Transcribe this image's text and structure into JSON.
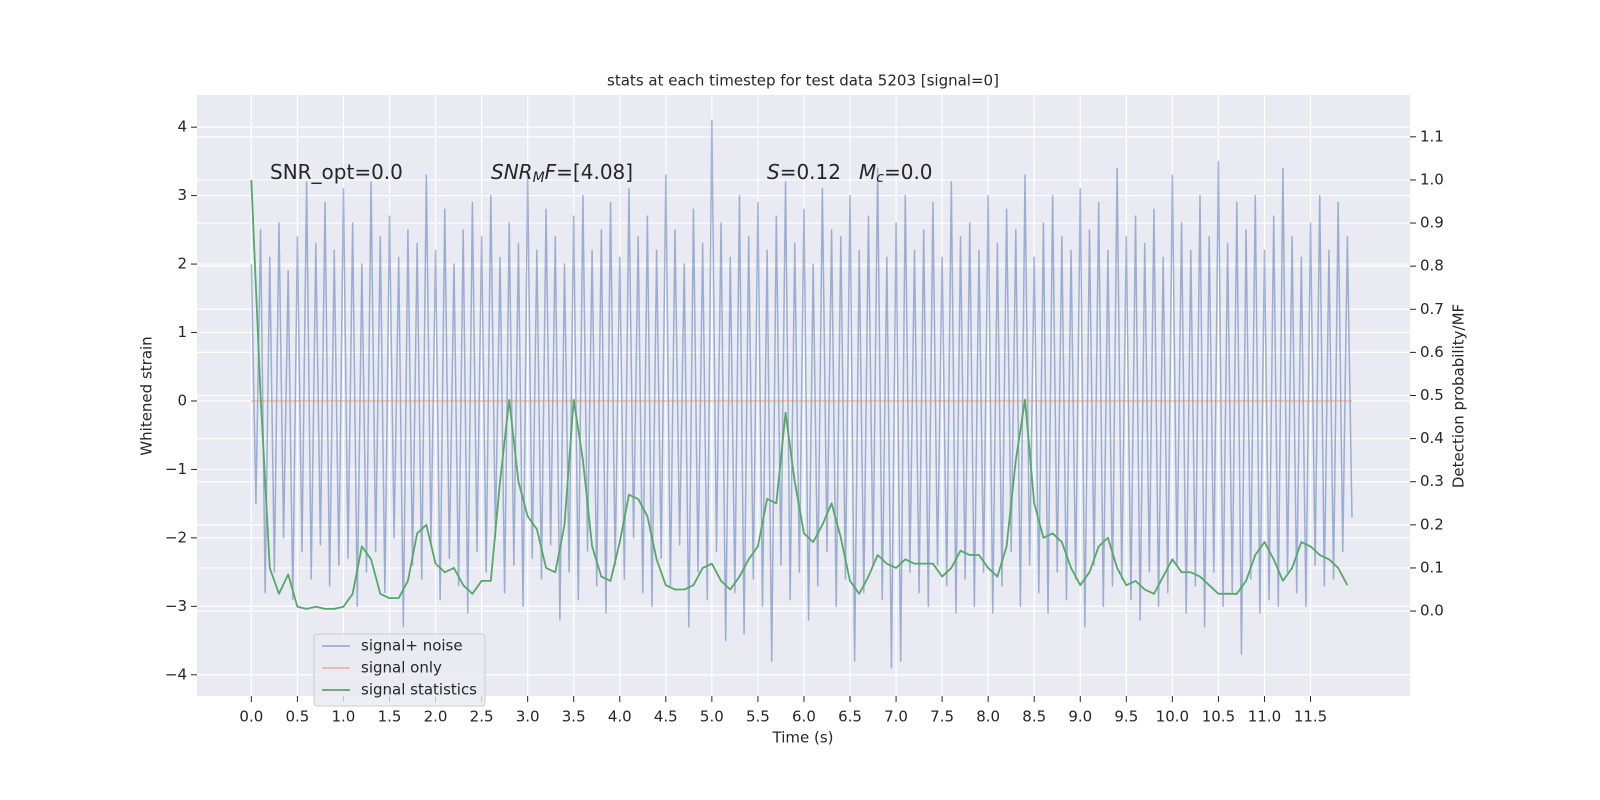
{
  "chart_data": {
    "type": "line",
    "title": "stats at each timestep for test data 5203 [signal=0]",
    "xlabel": "Time (s)",
    "ylabel": "Whitened strain",
    "y2label": "Detection probability/MF",
    "xlim": [
      -0.59,
      12.58
    ],
    "ylim": [
      -4.31,
      4.47
    ],
    "y2lim": [
      -0.197,
      1.197
    ],
    "xticks": [
      {
        "value": 0,
        "label": "0.0"
      },
      0.5,
      {
        "value": 1,
        "label": "1.0"
      },
      1.5,
      {
        "value": 2,
        "label": "2.0"
      },
      2.5,
      {
        "value": 3,
        "label": "3.0"
      },
      3.5,
      {
        "value": 4,
        "label": "4.0"
      },
      4.5,
      {
        "value": 5,
        "label": "5.0"
      },
      5.5,
      {
        "value": 6,
        "label": "6.0"
      },
      6.5,
      {
        "value": 7,
        "label": "7.0"
      },
      7.5,
      {
        "value": 8,
        "label": "8.0"
      },
      8.5,
      {
        "value": 9,
        "label": "9.0"
      },
      9.5,
      {
        "value": 10,
        "label": "10.0"
      },
      10.5,
      {
        "value": 11,
        "label": "11.0"
      },
      11.5
    ],
    "yticks": [
      {
        "value": -4,
        "label": "−4"
      },
      {
        "value": -3,
        "label": "−3"
      },
      {
        "value": -2,
        "label": "−2"
      },
      {
        "value": -1,
        "label": "−1"
      },
      0,
      1,
      2,
      3,
      4
    ],
    "y2ticks": [
      {
        "value": 0,
        "label": "0.0"
      },
      0.1,
      0.2,
      0.3,
      0.4,
      0.5,
      0.6,
      0.7,
      0.8,
      0.9,
      {
        "value": 1,
        "label": "1.0"
      },
      1.1
    ],
    "grid": true,
    "legend_loc": "lower left",
    "annotations": [
      {
        "segments": [
          {
            "text": "SNR_opt=0.0",
            "style": "normal"
          }
        ]
      },
      {
        "segments": [
          {
            "text": "SNR",
            "style": "italic"
          },
          {
            "text": "M",
            "style": "sub"
          },
          {
            "text": "F",
            "style": "italic"
          },
          {
            "text": "=[4.08]",
            "style": "normal"
          }
        ]
      },
      {
        "segments": [
          {
            "text": "S",
            "style": "italic"
          },
          {
            "text": "=0.12",
            "style": "normal"
          }
        ]
      },
      {
        "segments": [
          {
            "text": "M",
            "style": "italic"
          },
          {
            "text": "c",
            "style": "sub"
          },
          {
            "text": "=0.0",
            "style": "normal"
          }
        ]
      }
    ],
    "series": [
      {
        "name": "signal+ noise",
        "color": "#4c72b0",
        "opacity": 0.5,
        "axis": "y",
        "x": [
          0,
          0.05,
          0.1,
          0.15,
          0.2,
          0.25,
          0.3,
          0.35,
          0.4,
          0.45,
          0.5,
          0.55,
          0.6,
          0.65,
          0.7,
          0.75,
          0.8,
          0.85,
          0.9,
          0.95,
          1,
          1.05,
          1.1,
          1.15,
          1.2,
          1.25,
          1.3,
          1.35,
          1.4,
          1.45,
          1.5,
          1.55,
          1.6,
          1.65,
          1.7,
          1.75,
          1.8,
          1.85,
          1.9,
          1.95,
          2,
          2.05,
          2.1,
          2.15,
          2.2,
          2.25,
          2.3,
          2.35,
          2.4,
          2.45,
          2.5,
          2.55,
          2.6,
          2.65,
          2.7,
          2.75,
          2.8,
          2.85,
          2.9,
          2.95,
          3,
          3.05,
          3.1,
          3.15,
          3.2,
          3.25,
          3.3,
          3.35,
          3.4,
          3.45,
          3.5,
          3.55,
          3.6,
          3.65,
          3.7,
          3.75,
          3.8,
          3.85,
          3.9,
          3.95,
          4,
          4.05,
          4.1,
          4.15,
          4.2,
          4.25,
          4.3,
          4.35,
          4.4,
          4.45,
          4.5,
          4.55,
          4.6,
          4.65,
          4.7,
          4.75,
          4.8,
          4.85,
          4.9,
          4.95,
          5,
          5.05,
          5.1,
          5.15,
          5.2,
          5.25,
          5.3,
          5.35,
          5.4,
          5.45,
          5.5,
          5.55,
          5.6,
          5.65,
          5.7,
          5.75,
          5.8,
          5.85,
          5.9,
          5.95,
          6,
          6.05,
          6.1,
          6.15,
          6.2,
          6.25,
          6.3,
          6.35,
          6.4,
          6.45,
          6.5,
          6.55,
          6.6,
          6.65,
          6.7,
          6.75,
          6.8,
          6.85,
          6.9,
          6.95,
          7,
          7.05,
          7.1,
          7.15,
          7.2,
          7.25,
          7.3,
          7.35,
          7.4,
          7.45,
          7.5,
          7.55,
          7.6,
          7.65,
          7.7,
          7.75,
          7.8,
          7.85,
          7.9,
          7.95,
          8,
          8.05,
          8.1,
          8.15,
          8.2,
          8.25,
          8.3,
          8.35,
          8.4,
          8.45,
          8.5,
          8.55,
          8.6,
          8.65,
          8.7,
          8.75,
          8.8,
          8.85,
          8.9,
          8.95,
          9,
          9.05,
          9.1,
          9.15,
          9.2,
          9.25,
          9.3,
          9.35,
          9.4,
          9.45,
          9.5,
          9.55,
          9.6,
          9.65,
          9.7,
          9.75,
          9.8,
          9.85,
          9.9,
          9.95,
          10,
          10.05,
          10.1,
          10.15,
          10.2,
          10.25,
          10.3,
          10.35,
          10.4,
          10.45,
          10.5,
          10.55,
          10.6,
          10.65,
          10.7,
          10.75,
          10.8,
          10.85,
          10.9,
          10.95,
          11,
          11.05,
          11.1,
          11.15,
          11.2,
          11.25,
          11.3,
          11.35,
          11.4,
          11.45,
          11.5,
          11.55,
          11.6,
          11.65,
          11.7,
          11.75,
          11.8,
          11.85,
          11.9,
          11.95
        ],
        "values": [
          2.0,
          -1.5,
          2.5,
          -2.8,
          2.1,
          -2.5,
          2.6,
          -2.0,
          1.9,
          -2.9,
          2.4,
          -2.2,
          3.2,
          -2.6,
          2.3,
          -2.1,
          2.9,
          -2.7,
          2.2,
          -2.4,
          3.1,
          -2.3,
          2.6,
          -3.0,
          2.0,
          -2.5,
          3.2,
          -2.2,
          2.4,
          -2.8,
          2.7,
          -2.0,
          2.1,
          -3.3,
          2.5,
          -2.4,
          2.3,
          -2.6,
          3.3,
          -2.1,
          2.2,
          -2.9,
          2.8,
          -2.3,
          2.0,
          -2.7,
          2.5,
          -3.1,
          2.9,
          -2.2,
          2.4,
          -2.5,
          3.0,
          -2.0,
          2.1,
          -2.8,
          2.6,
          -2.4,
          2.3,
          -3.0,
          3.3,
          -2.3,
          2.2,
          -2.6,
          2.8,
          -2.1,
          2.4,
          -3.2,
          2.0,
          -2.5,
          2.7,
          -2.9,
          3.0,
          -2.2,
          2.2,
          -2.7,
          2.5,
          -3.1,
          2.9,
          -2.4,
          2.1,
          -2.6,
          3.1,
          -2.0,
          2.4,
          -2.8,
          2.7,
          -3.0,
          2.2,
          -2.3,
          3.3,
          -2.7,
          2.5,
          -2.1,
          2.0,
          -3.3,
          2.8,
          -2.5,
          2.3,
          -2.9,
          4.1,
          -2.2,
          2.6,
          -3.5,
          2.1,
          -2.8,
          3.0,
          -3.4,
          2.4,
          -2.6,
          2.9,
          -3.0,
          2.2,
          -3.8,
          2.7,
          -2.4,
          3.2,
          -2.9,
          2.3,
          -2.5,
          2.8,
          -3.2,
          2.0,
          -2.7,
          3.1,
          -2.2,
          2.5,
          -3.0,
          2.4,
          -2.6,
          3.0,
          -3.8,
          2.2,
          -2.8,
          2.7,
          -2.4,
          3.4,
          -2.9,
          2.1,
          -3.9,
          2.6,
          -3.8,
          3.0,
          -2.5,
          2.2,
          -2.8,
          2.5,
          -3.0,
          2.9,
          -2.4,
          2.1,
          -2.7,
          3.2,
          -3.1,
          2.4,
          -2.6,
          2.6,
          -3.0,
          2.2,
          -2.5,
          3.0,
          -3.1,
          2.3,
          -2.7,
          2.8,
          -2.2,
          2.5,
          -3.0,
          3.3,
          -2.4,
          2.1,
          -2.8,
          2.6,
          -3.1,
          3.0,
          -2.5,
          2.4,
          -2.9,
          2.2,
          -2.6,
          3.1,
          -3.3,
          2.5,
          -2.4,
          2.9,
          -3.0,
          2.2,
          -2.7,
          3.4,
          -2.6,
          2.4,
          -2.9,
          2.7,
          -3.2,
          2.3,
          -2.5,
          2.8,
          -3.0,
          2.1,
          -2.8,
          3.3,
          -2.4,
          2.6,
          -3.1,
          2.2,
          -2.7,
          3.0,
          -3.3,
          2.4,
          -2.5,
          3.5,
          -3.0,
          2.3,
          -2.8,
          2.9,
          -3.7,
          2.5,
          -2.6,
          3.0,
          -3.1,
          2.2,
          -2.9,
          2.7,
          -3.0,
          3.4,
          -2.5,
          2.4,
          -2.8,
          2.1,
          -3.0,
          2.6,
          -2.4,
          3.0,
          -2.7,
          2.2,
          -2.6,
          2.9,
          -2.2,
          2.4,
          -1.7
        ]
      },
      {
        "name": "signal only",
        "color": "#dd8452",
        "opacity": 0.5,
        "axis": "y",
        "x": [
          0,
          11.95
        ],
        "values": [
          0,
          0
        ]
      },
      {
        "name": "signal statistics",
        "color": "#55a868",
        "opacity": 1,
        "axis": "y2",
        "x": [
          0,
          0.1,
          0.2,
          0.3,
          0.4,
          0.5,
          0.6,
          0.7,
          0.8,
          0.9,
          1,
          1.1,
          1.2,
          1.3,
          1.4,
          1.5,
          1.6,
          1.7,
          1.8,
          1.9,
          2,
          2.1,
          2.2,
          2.3,
          2.4,
          2.5,
          2.6,
          2.7,
          2.8,
          2.9,
          3,
          3.1,
          3.2,
          3.3,
          3.4,
          3.5,
          3.6,
          3.7,
          3.8,
          3.9,
          4,
          4.1,
          4.2,
          4.3,
          4.4,
          4.5,
          4.6,
          4.7,
          4.8,
          4.9,
          5,
          5.1,
          5.2,
          5.3,
          5.4,
          5.5,
          5.6,
          5.7,
          5.8,
          5.9,
          6,
          6.1,
          6.2,
          6.3,
          6.4,
          6.5,
          6.6,
          6.7,
          6.8,
          6.9,
          7,
          7.1,
          7.2,
          7.3,
          7.4,
          7.5,
          7.6,
          7.7,
          7.8,
          7.9,
          8,
          8.1,
          8.2,
          8.3,
          8.4,
          8.5,
          8.6,
          8.7,
          8.8,
          8.9,
          9,
          9.1,
          9.2,
          9.3,
          9.4,
          9.5,
          9.6,
          9.7,
          9.8,
          9.9,
          10,
          10.1,
          10.2,
          10.3,
          10.4,
          10.5,
          10.6,
          10.7,
          10.8,
          10.9,
          11,
          11.1,
          11.2,
          11.3,
          11.4,
          11.5,
          11.6,
          11.7,
          11.8,
          11.9
        ],
        "values": [
          1.0,
          0.5,
          0.1,
          0.04,
          0.085,
          0.01,
          0.005,
          0.01,
          0.005,
          0.005,
          0.01,
          0.04,
          0.15,
          0.12,
          0.04,
          0.03,
          0.03,
          0.07,
          0.18,
          0.2,
          0.11,
          0.09,
          0.1,
          0.06,
          0.04,
          0.07,
          0.07,
          0.3,
          0.49,
          0.3,
          0.22,
          0.19,
          0.1,
          0.09,
          0.2,
          0.49,
          0.35,
          0.15,
          0.08,
          0.07,
          0.16,
          0.27,
          0.26,
          0.22,
          0.12,
          0.06,
          0.05,
          0.05,
          0.06,
          0.1,
          0.11,
          0.07,
          0.05,
          0.08,
          0.12,
          0.15,
          0.26,
          0.25,
          0.46,
          0.3,
          0.18,
          0.16,
          0.2,
          0.25,
          0.17,
          0.07,
          0.04,
          0.08,
          0.13,
          0.11,
          0.1,
          0.12,
          0.11,
          0.11,
          0.11,
          0.08,
          0.1,
          0.14,
          0.13,
          0.13,
          0.1,
          0.08,
          0.15,
          0.35,
          0.49,
          0.25,
          0.17,
          0.18,
          0.16,
          0.1,
          0.06,
          0.09,
          0.15,
          0.17,
          0.1,
          0.06,
          0.07,
          0.05,
          0.04,
          0.08,
          0.12,
          0.09,
          0.09,
          0.08,
          0.06,
          0.04,
          0.04,
          0.04,
          0.07,
          0.13,
          0.16,
          0.12,
          0.07,
          0.1,
          0.16,
          0.15,
          0.13,
          0.12,
          0.1,
          0.06
        ]
      }
    ]
  }
}
